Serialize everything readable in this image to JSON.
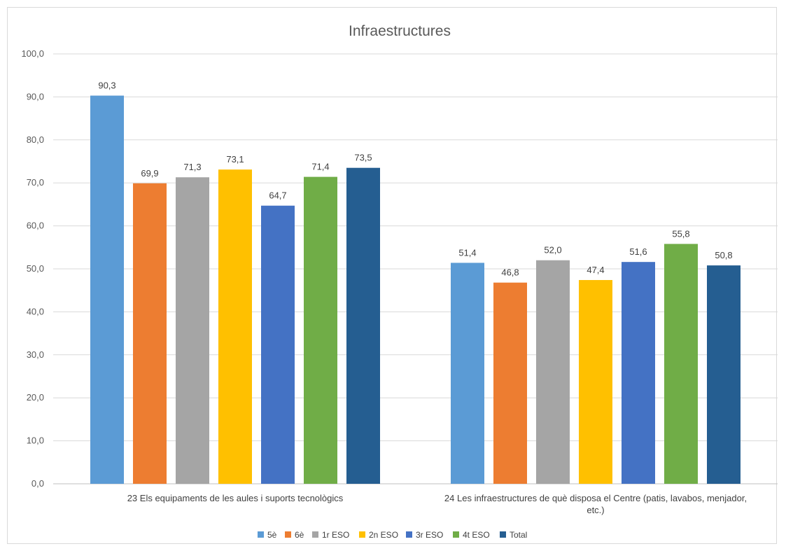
{
  "chart_data": {
    "type": "bar",
    "title": "Infraestructures",
    "ylim": [
      0,
      100
    ],
    "yticks": [
      "0,0",
      "10,0",
      "20,0",
      "30,0",
      "40,0",
      "50,0",
      "60,0",
      "70,0",
      "80,0",
      "90,0",
      "100,0"
    ],
    "grid": true,
    "legend_position": "bottom",
    "categories": [
      [
        "23 Els equipaments de les aules i suports tecnològics"
      ],
      [
        "24 Les infraestructures de què disposa el Centre (patis, lavabos, menjador,",
        "etc.)"
      ]
    ],
    "series": [
      {
        "name": "5è",
        "color": "#5B9BD5",
        "values": [
          90.3,
          51.4
        ],
        "labels": [
          "90,3",
          "51,4"
        ]
      },
      {
        "name": "6è",
        "color": "#ED7D31",
        "values": [
          69.9,
          46.8
        ],
        "labels": [
          "69,9",
          "46,8"
        ]
      },
      {
        "name": "1r ESO",
        "color": "#A5A5A5",
        "values": [
          71.3,
          52.0
        ],
        "labels": [
          "71,3",
          "52,0"
        ]
      },
      {
        "name": "2n ESO",
        "color": "#FFC000",
        "values": [
          73.1,
          47.4
        ],
        "labels": [
          "73,1",
          "47,4"
        ]
      },
      {
        "name": "3r ESO",
        "color": "#4472C4",
        "values": [
          64.7,
          51.6
        ],
        "labels": [
          "64,7",
          "51,6"
        ]
      },
      {
        "name": "4t ESO",
        "color": "#70AD47",
        "values": [
          71.4,
          55.8
        ],
        "labels": [
          "71,4",
          "55,8"
        ]
      },
      {
        "name": "Total",
        "color": "#255E91",
        "values": [
          73.5,
          50.8
        ],
        "labels": [
          "73,5",
          "50,8"
        ]
      }
    ]
  }
}
